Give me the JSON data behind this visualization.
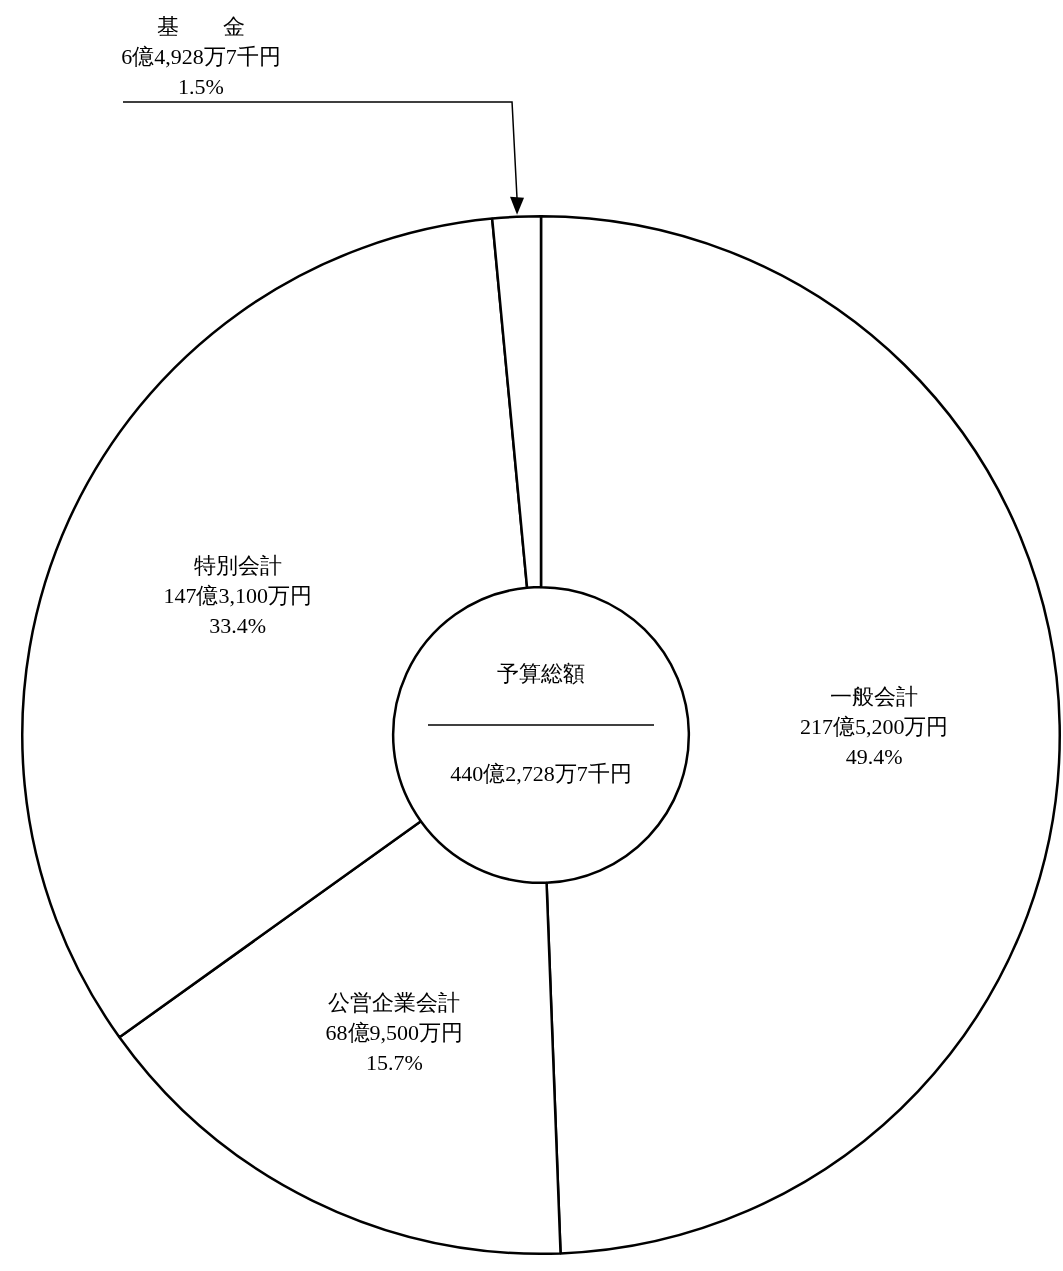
{
  "chart_data": {
    "type": "donut",
    "categories": [
      "一般会計",
      "公営企業会計",
      "特別会計",
      "基　　金"
    ],
    "values": [
      49.4,
      15.7,
      33.4,
      1.5
    ],
    "colors": [
      "#ffffff",
      "#ffffff",
      "#ffffff",
      "#ffffff"
    ],
    "value_labels": [
      "217億5,200万円\n49.4%",
      "68億9,500万円\n15.7%",
      "147億3,100万円\n33.4%",
      "6億4,928万7千円\n1.5%"
    ],
    "annotations": [
      "予算総額",
      "440億2,728万7千円"
    ],
    "legend": false
  }
}
